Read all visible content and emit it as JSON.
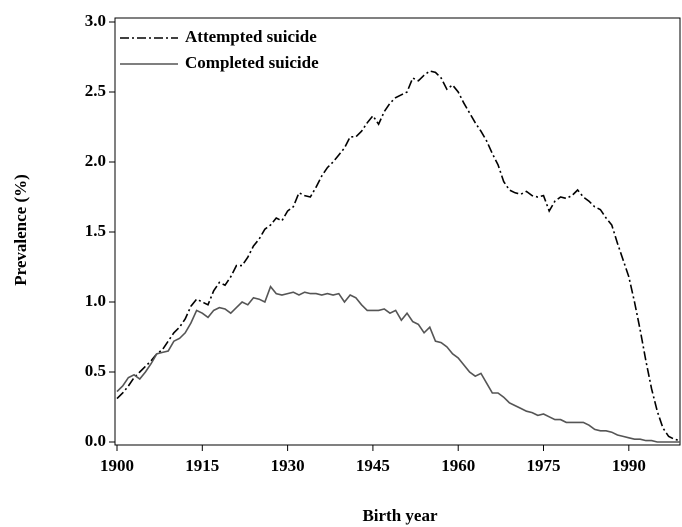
{
  "chart_data": {
    "type": "line",
    "x_label": "Birth year",
    "y_label": "Prevalence (%)",
    "x": [
      1900,
      1901,
      1902,
      1903,
      1904,
      1905,
      1906,
      1907,
      1908,
      1909,
      1910,
      1911,
      1912,
      1913,
      1914,
      1915,
      1916,
      1917,
      1918,
      1919,
      1920,
      1921,
      1922,
      1923,
      1924,
      1925,
      1926,
      1927,
      1928,
      1929,
      1930,
      1931,
      1932,
      1933,
      1934,
      1935,
      1936,
      1937,
      1938,
      1939,
      1940,
      1941,
      1942,
      1943,
      1944,
      1945,
      1946,
      1947,
      1948,
      1949,
      1950,
      1951,
      1952,
      1953,
      1954,
      1955,
      1956,
      1957,
      1958,
      1959,
      1960,
      1961,
      1962,
      1963,
      1964,
      1965,
      1966,
      1967,
      1968,
      1969,
      1970,
      1971,
      1972,
      1973,
      1974,
      1975,
      1976,
      1977,
      1978,
      1979,
      1980,
      1981,
      1982,
      1983,
      1984,
      1985,
      1986,
      1987,
      1988,
      1989,
      1990,
      1991,
      1992,
      1993,
      1994,
      1995,
      1996,
      1997,
      1998,
      1999
    ],
    "series": [
      {
        "name": "Attempted suicide",
        "color": "#000000",
        "dash": "9,3,2,3",
        "values": [
          0.31,
          0.35,
          0.4,
          0.46,
          0.5,
          0.54,
          0.58,
          0.63,
          0.66,
          0.72,
          0.78,
          0.82,
          0.88,
          0.97,
          1.02,
          1.0,
          0.98,
          1.08,
          1.14,
          1.12,
          1.18,
          1.26,
          1.26,
          1.32,
          1.4,
          1.45,
          1.52,
          1.55,
          1.6,
          1.58,
          1.65,
          1.68,
          1.78,
          1.76,
          1.75,
          1.82,
          1.9,
          1.96,
          2.0,
          2.05,
          2.1,
          2.18,
          2.18,
          2.22,
          2.28,
          2.33,
          2.27,
          2.36,
          2.42,
          2.46,
          2.48,
          2.5,
          2.6,
          2.58,
          2.62,
          2.65,
          2.64,
          2.6,
          2.52,
          2.55,
          2.5,
          2.42,
          2.35,
          2.28,
          2.22,
          2.15,
          2.06,
          1.98,
          1.86,
          1.8,
          1.78,
          1.77,
          1.79,
          1.76,
          1.75,
          1.76,
          1.65,
          1.72,
          1.75,
          1.74,
          1.76,
          1.8,
          1.75,
          1.72,
          1.68,
          1.66,
          1.6,
          1.55,
          1.42,
          1.3,
          1.18,
          1.0,
          0.8,
          0.58,
          0.38,
          0.22,
          0.1,
          0.04,
          0.02,
          0.01
        ]
      },
      {
        "name": "Completed suicide",
        "color": "#555555",
        "dash": "none",
        "values": [
          0.36,
          0.4,
          0.46,
          0.48,
          0.45,
          0.5,
          0.56,
          0.63,
          0.64,
          0.65,
          0.72,
          0.74,
          0.78,
          0.85,
          0.94,
          0.92,
          0.89,
          0.94,
          0.96,
          0.95,
          0.92,
          0.96,
          1.0,
          0.98,
          1.03,
          1.02,
          1.0,
          1.11,
          1.06,
          1.05,
          1.06,
          1.07,
          1.05,
          1.07,
          1.06,
          1.06,
          1.05,
          1.06,
          1.05,
          1.06,
          1.0,
          1.05,
          1.03,
          0.98,
          0.94,
          0.94,
          0.94,
          0.95,
          0.92,
          0.94,
          0.87,
          0.92,
          0.86,
          0.84,
          0.78,
          0.82,
          0.72,
          0.71,
          0.68,
          0.63,
          0.6,
          0.55,
          0.5,
          0.47,
          0.49,
          0.42,
          0.35,
          0.35,
          0.32,
          0.28,
          0.26,
          0.24,
          0.22,
          0.21,
          0.19,
          0.2,
          0.18,
          0.16,
          0.16,
          0.14,
          0.14,
          0.14,
          0.14,
          0.12,
          0.09,
          0.08,
          0.08,
          0.07,
          0.05,
          0.04,
          0.03,
          0.02,
          0.02,
          0.01,
          0.01,
          0.0,
          0.0,
          0.0,
          0.0,
          0.0
        ]
      }
    ],
    "xlim": [
      1900,
      1999
    ],
    "xticks": [
      1900,
      1915,
      1930,
      1945,
      1960,
      1975,
      1990
    ],
    "ylim": [
      0,
      3
    ],
    "yticks": [
      {
        "value": 0,
        "label": "0.0"
      },
      {
        "value": 0.5,
        "label": "0.5"
      },
      {
        "value": 1,
        "label": "1.0"
      },
      {
        "value": 1.5,
        "label": "1.5"
      },
      {
        "value": 2,
        "label": "2.0"
      },
      {
        "value": 2.5,
        "label": "2.5"
      },
      {
        "value": 3,
        "label": "3.0"
      }
    ],
    "legend": "upper left"
  }
}
